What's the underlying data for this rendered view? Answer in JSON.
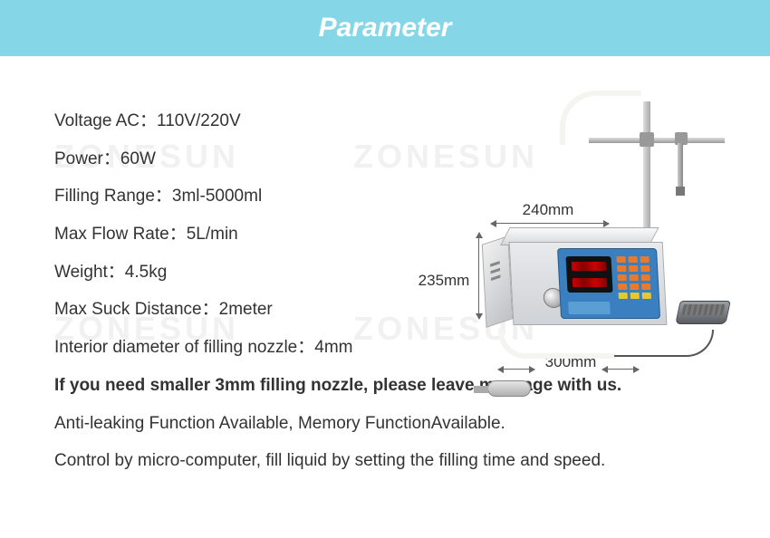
{
  "header": {
    "title": "Parameter"
  },
  "watermark": "ZONESUN",
  "specs": {
    "voltage_label": "Voltage AC：",
    "voltage_value": "110V/220V",
    "power_label": "Power：",
    "power_value": "60W",
    "range_label": "Filling Range：",
    "range_value": "3ml-5000ml",
    "flow_label": "Max Flow Rate：",
    "flow_value": "5L/min",
    "weight_label": "Weight：",
    "weight_value": "4.5kg",
    "suck_label": "Max Suck Distance：",
    "suck_value": "2meter",
    "nozzle_label": "Interior diameter of filling nozzle：",
    "nozzle_value": "4mm",
    "notice": "If you need smaller 3mm filling nozzle, please leave message with us.",
    "feature1": "Anti-leaking Function Available, Memory FunctionAvailable.",
    "feature2": "Control by micro-computer, fill liquid by setting the filling time and speed."
  },
  "dimensions": {
    "width": "240mm",
    "height": "235mm",
    "depth": "300mm"
  },
  "colors": {
    "page_bg": "#d9f0f2",
    "header_bg": "#85d7e8",
    "header_text": "#ffffff",
    "body_text": "#333333",
    "notice_text": "#e60012",
    "watermark": "#f1f1f1",
    "panel": "#3a7fbf"
  },
  "typography": {
    "header_fontsize": 30,
    "body_fontsize": 19,
    "watermark_fontsize": 36
  }
}
